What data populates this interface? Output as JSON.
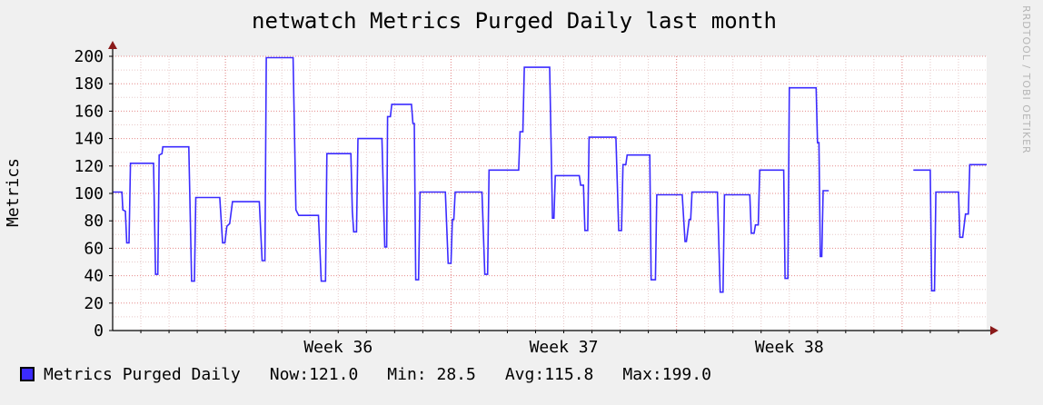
{
  "chart_data": {
    "type": "line",
    "title": "netwatch Metrics Purged Daily last month",
    "ylabel": "Metrics",
    "ylim": [
      0,
      200
    ],
    "yticks": [
      0,
      20,
      40,
      60,
      80,
      100,
      120,
      140,
      160,
      180,
      200
    ],
    "xlim": [
      0,
      31
    ],
    "week_labels": [
      {
        "label": "Week 36",
        "x": 8
      },
      {
        "label": "Week 37",
        "x": 16
      },
      {
        "label": "Week 38",
        "x": 24
      }
    ],
    "series": [
      {
        "name": "Metrics Purged Daily",
        "color": "#3b2bff",
        "segments": [
          [
            [
              0.0,
              101
            ],
            [
              0.33,
              101
            ],
            [
              0.36,
              88
            ],
            [
              0.45,
              87
            ],
            [
              0.5,
              64
            ],
            [
              0.58,
              64
            ],
            [
              0.63,
              122
            ],
            [
              1.45,
              122
            ],
            [
              1.52,
              41
            ],
            [
              1.6,
              41
            ],
            [
              1.65,
              128
            ],
            [
              1.75,
              129
            ],
            [
              1.78,
              134
            ],
            [
              2.7,
              134
            ],
            [
              2.8,
              36
            ],
            [
              2.9,
              36
            ],
            [
              2.95,
              97
            ],
            [
              3.8,
              97
            ],
            [
              3.9,
              64
            ],
            [
              3.98,
              64
            ],
            [
              4.05,
              76
            ],
            [
              4.15,
              78
            ],
            [
              4.25,
              94
            ],
            [
              5.2,
              94
            ],
            [
              5.3,
              51
            ],
            [
              5.4,
              51
            ],
            [
              5.45,
              199
            ],
            [
              6.4,
              199
            ],
            [
              6.5,
              88
            ],
            [
              6.6,
              84
            ],
            [
              7.3,
              84
            ],
            [
              7.4,
              36
            ],
            [
              7.55,
              36
            ],
            [
              7.6,
              129
            ],
            [
              8.45,
              129
            ],
            [
              8.5,
              87
            ],
            [
              8.55,
              72
            ],
            [
              8.65,
              72
            ],
            [
              8.7,
              140
            ],
            [
              9.55,
              140
            ],
            [
              9.65,
              61
            ],
            [
              9.72,
              61
            ],
            [
              9.75,
              156
            ],
            [
              9.85,
              156
            ],
            [
              9.9,
              165
            ],
            [
              10.6,
              165
            ],
            [
              10.65,
              151
            ],
            [
              10.7,
              151
            ],
            [
              10.75,
              37
            ],
            [
              10.85,
              37
            ],
            [
              10.9,
              101
            ],
            [
              11.8,
              101
            ],
            [
              11.9,
              49
            ],
            [
              12.0,
              49
            ],
            [
              12.05,
              81
            ],
            [
              12.1,
              81
            ],
            [
              12.15,
              101
            ],
            [
              13.1,
              101
            ],
            [
              13.2,
              41
            ],
            [
              13.3,
              41
            ],
            [
              13.35,
              117
            ],
            [
              14.4,
              117
            ],
            [
              14.45,
              145
            ],
            [
              14.55,
              145
            ],
            [
              14.6,
              192
            ],
            [
              15.5,
              192
            ],
            [
              15.6,
              82
            ],
            [
              15.65,
              82
            ],
            [
              15.7,
              113
            ],
            [
              16.55,
              113
            ],
            [
              16.6,
              106
            ],
            [
              16.7,
              106
            ],
            [
              16.75,
              73
            ],
            [
              16.85,
              73
            ],
            [
              16.9,
              141
            ],
            [
              17.85,
              141
            ],
            [
              17.95,
              73
            ],
            [
              18.05,
              73
            ],
            [
              18.1,
              121
            ],
            [
              18.2,
              121
            ],
            [
              18.25,
              128
            ],
            [
              19.05,
              128
            ],
            [
              19.1,
              37
            ],
            [
              19.25,
              37
            ],
            [
              19.3,
              99
            ],
            [
              20.2,
              99
            ],
            [
              20.3,
              65
            ],
            [
              20.35,
              65
            ],
            [
              20.45,
              81
            ],
            [
              20.5,
              81
            ],
            [
              20.55,
              101
            ],
            [
              21.45,
              101
            ],
            [
              21.55,
              28
            ],
            [
              21.65,
              28
            ],
            [
              21.7,
              99
            ],
            [
              22.6,
              99
            ],
            [
              22.65,
              71
            ],
            [
              22.75,
              71
            ],
            [
              22.8,
              77
            ],
            [
              22.9,
              77
            ],
            [
              22.95,
              117
            ],
            [
              23.8,
              117
            ],
            [
              23.85,
              38
            ],
            [
              23.95,
              38
            ],
            [
              24.0,
              177
            ],
            [
              24.95,
              177
            ],
            [
              25.0,
              137
            ],
            [
              25.05,
              137
            ],
            [
              25.1,
              54
            ],
            [
              25.15,
              54
            ],
            [
              25.2,
              102
            ],
            [
              25.4,
              102
            ]
          ],
          [
            [
              28.4,
              117
            ],
            [
              29.0,
              117
            ],
            [
              29.05,
              29
            ],
            [
              29.15,
              29
            ],
            [
              29.2,
              101
            ],
            [
              30.0,
              101
            ],
            [
              30.05,
              68
            ],
            [
              30.15,
              68
            ],
            [
              30.25,
              85
            ],
            [
              30.35,
              85
            ],
            [
              30.4,
              121
            ],
            [
              31.0,
              121
            ]
          ]
        ]
      }
    ],
    "grid": true
  },
  "legend": {
    "label": "Metrics Purged Daily",
    "now": "Now:121.0",
    "min": "Min: 28.5",
    "avg": "Avg:115.8",
    "max": "Max:199.0"
  },
  "watermark": "RRDTOOL / TOBI OETIKER"
}
